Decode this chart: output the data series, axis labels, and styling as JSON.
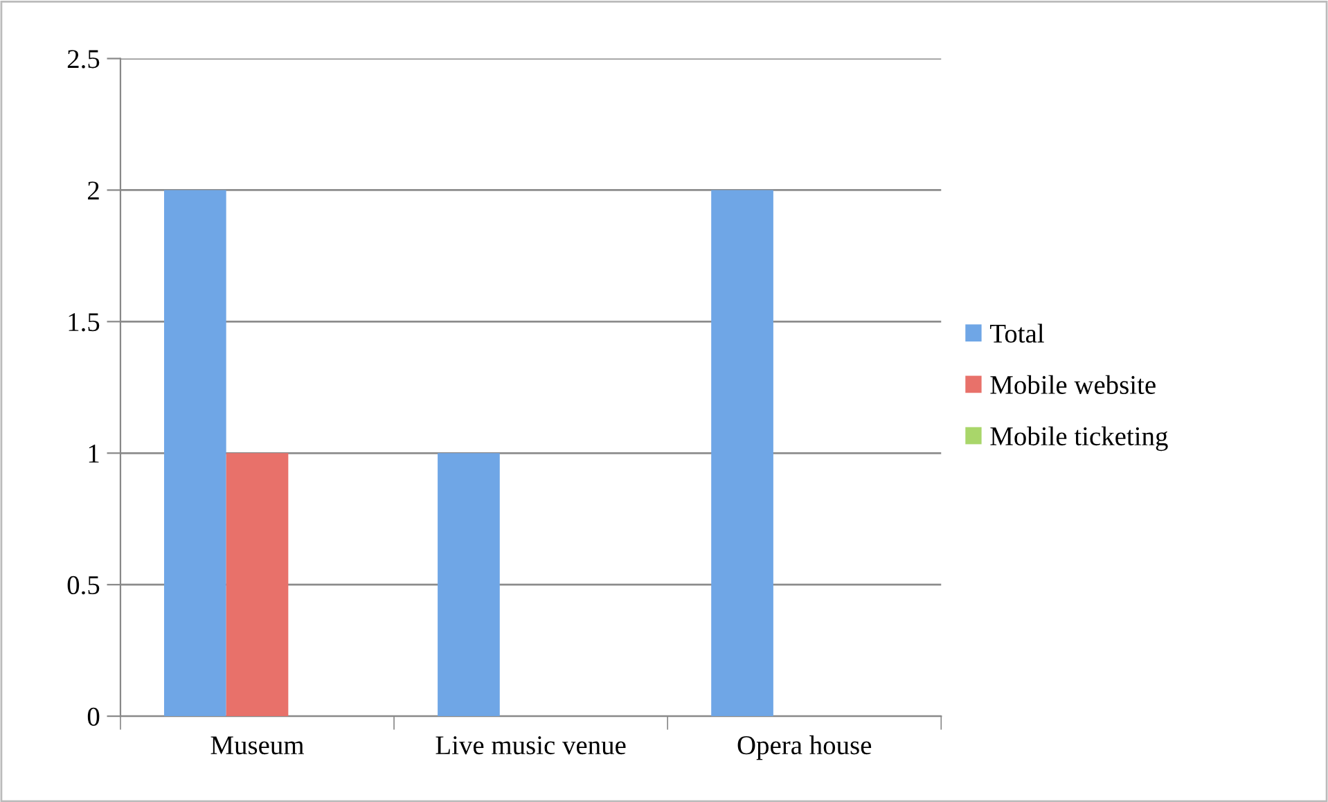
{
  "chart_data": {
    "type": "bar",
    "categories": [
      "Museum",
      "Live music venue",
      "Opera house"
    ],
    "series": [
      {
        "name": "Total",
        "color": "#6fa6e6",
        "values": [
          2,
          1,
          2
        ]
      },
      {
        "name": "Mobile website",
        "color": "#e8716a",
        "values": [
          1,
          0,
          0
        ]
      },
      {
        "name": "Mobile ticketing",
        "color": "#a9d66a",
        "values": [
          0,
          0,
          0
        ]
      }
    ],
    "ylim": [
      0,
      2.5
    ],
    "yticks": [
      0,
      0.5,
      1,
      1.5,
      2,
      2.5
    ],
    "grid": "y",
    "legend": "right"
  }
}
